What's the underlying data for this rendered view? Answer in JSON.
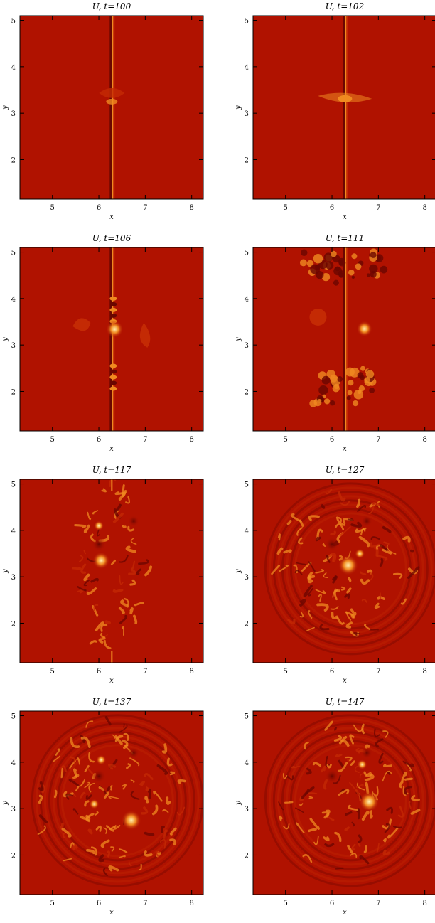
{
  "panels": [
    {
      "title": "U,  t=100",
      "xlabel": "x",
      "ylabel": "y",
      "xticks": [
        5,
        6,
        7,
        8
      ],
      "yticks": [
        2,
        3,
        4,
        5
      ],
      "xlim": [
        4.3,
        8.25
      ],
      "ylim": [
        1.15,
        5.1
      ],
      "stage": 0
    },
    {
      "title": "U,  t=102",
      "xlabel": "x",
      "ylabel": "y",
      "xticks": [
        5,
        6,
        7,
        8
      ],
      "yticks": [
        2,
        3,
        4,
        5
      ],
      "xlim": [
        4.3,
        8.25
      ],
      "ylim": [
        1.15,
        5.1
      ],
      "stage": 1
    },
    {
      "title": "U,  t=106",
      "xlabel": "x",
      "ylabel": "y",
      "xticks": [
        5,
        6,
        7,
        8
      ],
      "yticks": [
        2,
        3,
        4,
        5
      ],
      "xlim": [
        4.3,
        8.25
      ],
      "ylim": [
        1.15,
        5.1
      ],
      "stage": 2
    },
    {
      "title": "U,  t=111",
      "xlabel": "x",
      "ylabel": "y",
      "xticks": [
        5,
        6,
        7,
        8
      ],
      "yticks": [
        2,
        3,
        4,
        5
      ],
      "xlim": [
        4.3,
        8.25
      ],
      "ylim": [
        1.15,
        5.1
      ],
      "stage": 3
    },
    {
      "title": "U,  t=117",
      "xlabel": "x",
      "ylabel": "y",
      "xticks": [
        5,
        6,
        7,
        8
      ],
      "yticks": [
        2,
        3,
        4,
        5
      ],
      "xlim": [
        4.3,
        8.25
      ],
      "ylim": [
        1.15,
        5.1
      ],
      "stage": 4
    },
    {
      "title": "U,  t=127",
      "xlabel": "x",
      "ylabel": "y",
      "xticks": [
        5,
        6,
        7,
        8
      ],
      "yticks": [
        2,
        3,
        4,
        5
      ],
      "xlim": [
        4.3,
        8.25
      ],
      "ylim": [
        1.15,
        5.1
      ],
      "stage": 5
    },
    {
      "title": "U,  t=137",
      "xlabel": "x",
      "ylabel": "y",
      "xticks": [
        5,
        6,
        7,
        8
      ],
      "yticks": [
        2,
        3,
        4,
        5
      ],
      "xlim": [
        4.3,
        8.25
      ],
      "ylim": [
        1.15,
        5.1
      ],
      "stage": 6
    },
    {
      "title": "U,  t=147",
      "xlabel": "x",
      "ylabel": "y",
      "xticks": [
        5,
        6,
        7,
        8
      ],
      "yticks": [
        2,
        3,
        4,
        5
      ],
      "xlim": [
        4.3,
        8.25
      ],
      "ylim": [
        1.15,
        5.1
      ],
      "stage": 7
    }
  ],
  "colors": {
    "background": "#b01200",
    "mid": "#c42a04",
    "bright": "#f08a20",
    "hot": "#fff0b0",
    "dark": "#6a0600"
  }
}
